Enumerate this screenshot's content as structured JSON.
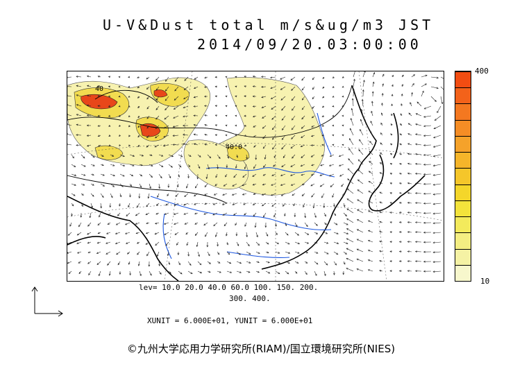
{
  "title": {
    "line1": "U-V&Dust total m/s&ug/m3 JST",
    "line2": "2014/09/20.03:00:00"
  },
  "legend": {
    "max_label": "400",
    "min_label": "10",
    "colors": [
      "#f7f7cc",
      "#f5f2a4",
      "#f4ee82",
      "#f3ea5c",
      "#f3e33b",
      "#f4d62a",
      "#f5c62a",
      "#f5b52a",
      "#f5a22a",
      "#f58d25",
      "#f47820",
      "#f3621a",
      "#f24d12"
    ]
  },
  "contour_labels": {
    "label_a": "40",
    "label_b": "40.0"
  },
  "levels": {
    "line1": "lev= 10.0 20.0 40.0 60.0 100. 150. 200.",
    "line2": "300. 400."
  },
  "units": "XUNIT = 6.000E+01, YUNIT = 6.000E+01",
  "copyright": "©九州大学応用力学研究所(RIAM)/国立環境研究所(NIES)",
  "colors": {
    "coast": "#000000",
    "river": "#1a55e0",
    "dust_light": "#f7f2b0",
    "dust_mid": "#f2dc50",
    "dust_high": "#e8471a"
  }
}
